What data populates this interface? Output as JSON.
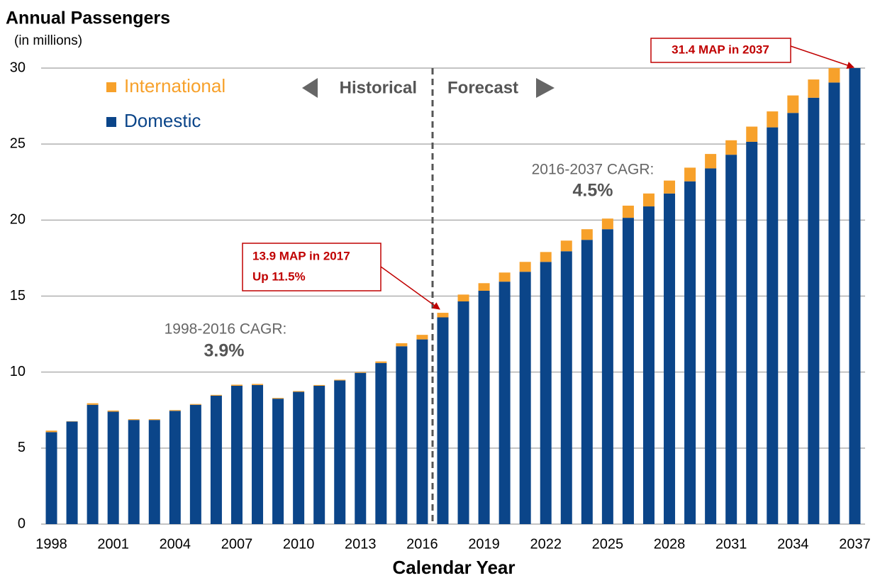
{
  "chart_data": {
    "type": "stacked_bar",
    "title": "Annual Passengers",
    "subtitle": "(in millions)",
    "x_label": "Calendar Year",
    "categories": [
      "1998",
      null,
      null,
      "2001",
      null,
      null,
      "2004",
      null,
      null,
      "2007",
      null,
      null,
      "2010",
      null,
      null,
      "2013",
      null,
      null,
      "2016",
      null,
      null,
      "2019",
      null,
      null,
      "2022",
      null,
      null,
      "2025",
      null,
      null,
      "2028",
      null,
      null,
      "2031",
      null,
      null,
      "2034",
      null,
      null,
      "2037"
    ],
    "series": [
      {
        "name": "Domestic",
        "color": "#0b4589",
        "values": [
          6.05,
          6.75,
          7.85,
          7.4,
          6.85,
          6.85,
          7.45,
          7.85,
          8.45,
          9.1,
          9.15,
          8.25,
          8.7,
          9.1,
          9.45,
          9.95,
          10.6,
          11.7,
          12.15,
          13.6,
          14.65,
          15.35,
          15.95,
          16.6,
          17.25,
          17.95,
          18.7,
          19.4,
          20.15,
          20.9,
          21.75,
          22.55,
          23.4,
          24.3,
          25.15,
          26.1,
          27.05,
          28.05,
          29.05,
          30.1
        ]
      },
      {
        "name": "International",
        "color": "#f7a12b",
        "values": [
          0.1,
          0.02,
          0.1,
          0.07,
          0.05,
          0.05,
          0.05,
          0.05,
          0.05,
          0.07,
          0.07,
          0.05,
          0.05,
          0.05,
          0.05,
          0.05,
          0.1,
          0.2,
          0.3,
          0.3,
          0.45,
          0.5,
          0.6,
          0.65,
          0.65,
          0.7,
          0.7,
          0.7,
          0.8,
          0.85,
          0.85,
          0.9,
          0.95,
          0.95,
          1.0,
          1.05,
          1.15,
          1.2,
          1.25,
          1.3
        ]
      }
    ],
    "ylim": [
      0,
      30
    ],
    "yticks": [
      0,
      5,
      10,
      15,
      20,
      25,
      30
    ],
    "grid": true,
    "period_labels": [
      "Historical",
      "Forecast"
    ],
    "annotations": {
      "cagr_hist": {
        "label": "1998-2016 CAGR:",
        "value": "3.9%"
      },
      "cagr_fcst": {
        "label": "2016-2037 CAGR:",
        "value": "4.5%"
      },
      "callout_2017": [
        "13.9 MAP in 2017",
        "Up 11.5%"
      ],
      "callout_2037": "31.4 MAP in 2037"
    }
  }
}
